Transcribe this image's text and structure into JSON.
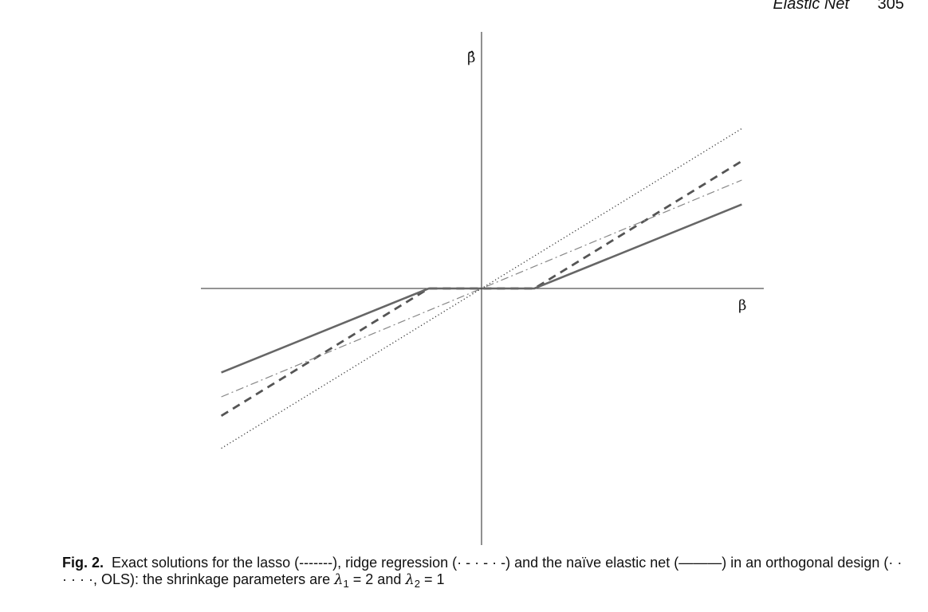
{
  "header": {
    "running_title": "Elastic Net",
    "page_number": "305"
  },
  "figure": {
    "y_axis_symbol": "β̂",
    "x_axis_symbol": "β",
    "colors": {
      "axis": "#555555",
      "lines": "#666666",
      "text": "#111111"
    }
  },
  "chart_data": {
    "type": "line",
    "title": "",
    "xlabel": "β",
    "ylabel": "β̂",
    "grid": false,
    "legend": "none",
    "xlim": [
      -3.5,
      3.5
    ],
    "ylim": [
      -3.5,
      3.5
    ],
    "series": [
      {
        "style": "dashed",
        "x": [
          -3.2,
          -0.65,
          0.65,
          3.2
        ],
        "y": [
          -2.35,
          0,
          0,
          2.35
        ]
      },
      {
        "style": "dash-dot",
        "x": [
          -3.2,
          3.2
        ],
        "y": [
          -2.0,
          2.0
        ]
      },
      {
        "style": "solid",
        "x": [
          -3.2,
          -0.65,
          0.65,
          3.2
        ],
        "y": [
          -1.55,
          0,
          0,
          1.55
        ]
      },
      {
        "style": "dotted",
        "x": [
          -3.2,
          3.2
        ],
        "y": [
          -2.95,
          2.95
        ]
      }
    ]
  },
  "caption": {
    "label": "Fig. 2.",
    "text_part1": "Exact solutions for the lasso (-------), ridge regression (· - · - · -) and the naïve elastic net (———) in an orthogonal design (· · · · · ·, OLS): the shrinkage parameters are ",
    "lambda1_symbol": "λ",
    "lambda1_sub": "1",
    "lambda1_eq": " = 2 and ",
    "lambda2_symbol": "λ",
    "lambda2_sub": "2",
    "lambda2_eq": " = 1"
  }
}
